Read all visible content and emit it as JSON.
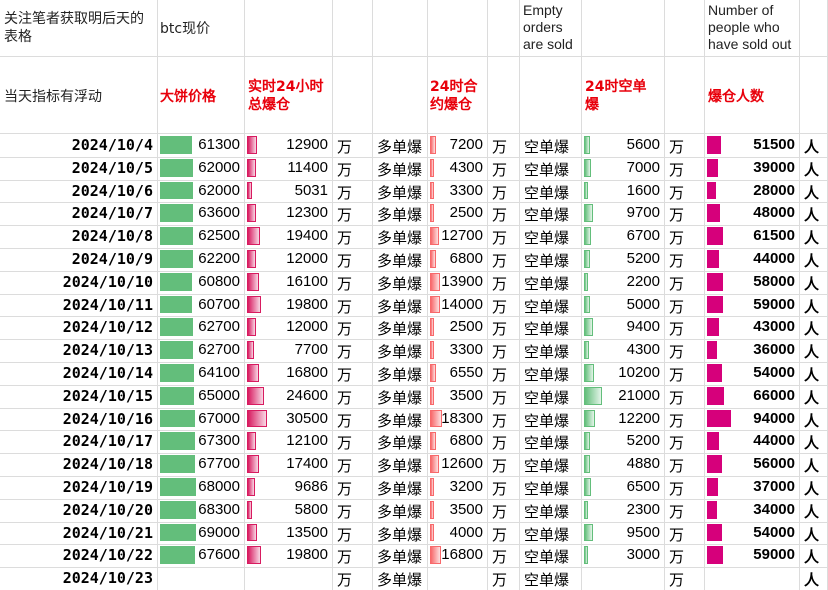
{
  "header": {
    "row1": {
      "note": "关注笔者获取明后天的表格",
      "price": "btc现价",
      "short_en": "Empty orders are sold",
      "people_en": "Number of people who have sold out"
    },
    "row2": {
      "note": "当天指标有浮动",
      "price": "大饼价格",
      "total": "实时24小时总爆仓",
      "long": "24时合约爆仓",
      "short": "24时空单爆",
      "people": "爆仓人数"
    }
  },
  "table": {
    "rows": [
      [
        "2024/10/4",
        61300,
        12900,
        "万",
        "多单爆",
        7200,
        "万",
        "空单爆",
        5600,
        "万",
        51500,
        "人"
      ],
      [
        "2024/10/5",
        62000,
        11400,
        "万",
        "多单爆",
        4300,
        "万",
        "空单爆",
        7000,
        "万",
        39000,
        "人"
      ],
      [
        "2024/10/6",
        62000,
        5031,
        "万",
        "多单爆",
        3300,
        "万",
        "空单爆",
        1600,
        "万",
        28000,
        "人"
      ],
      [
        "2024/10/7",
        63600,
        12300,
        "万",
        "多单爆",
        2500,
        "万",
        "空单爆",
        9700,
        "万",
        48000,
        "人"
      ],
      [
        "2024/10/8",
        62500,
        19400,
        "万",
        "多单爆",
        12700,
        "万",
        "空单爆",
        6700,
        "万",
        61500,
        "人"
      ],
      [
        "2024/10/9",
        62200,
        12000,
        "万",
        "多单爆",
        6800,
        "万",
        "空单爆",
        5200,
        "万",
        44000,
        "人"
      ],
      [
        "2024/10/10",
        60800,
        16100,
        "万",
        "多单爆",
        13900,
        "万",
        "空单爆",
        2200,
        "万",
        58000,
        "人"
      ],
      [
        "2024/10/11",
        60700,
        19800,
        "万",
        "多单爆",
        14000,
        "万",
        "空单爆",
        5000,
        "万",
        59000,
        "人"
      ],
      [
        "2024/10/12",
        62700,
        12000,
        "万",
        "多单爆",
        2500,
        "万",
        "空单爆",
        9400,
        "万",
        43000,
        "人"
      ],
      [
        "2024/10/13",
        62700,
        7700,
        "万",
        "多单爆",
        3300,
        "万",
        "空单爆",
        4300,
        "万",
        36000,
        "人"
      ],
      [
        "2024/10/14",
        64100,
        16800,
        "万",
        "多单爆",
        6550,
        "万",
        "空单爆",
        10200,
        "万",
        54000,
        "人"
      ],
      [
        "2024/10/15",
        65000,
        24600,
        "万",
        "多单爆",
        3500,
        "万",
        "空单爆",
        21000,
        "万",
        66000,
        "人"
      ],
      [
        "2024/10/16",
        67000,
        30500,
        "万",
        "多单爆",
        18300,
        "万",
        "空单爆",
        12200,
        "万",
        94000,
        "人"
      ],
      [
        "2024/10/17",
        67300,
        12100,
        "万",
        "多单爆",
        6800,
        "万",
        "空单爆",
        5200,
        "万",
        44000,
        "人"
      ],
      [
        "2024/10/18",
        67700,
        17400,
        "万",
        "多单爆",
        12600,
        "万",
        "空单爆",
        4880,
        "万",
        56000,
        "人"
      ],
      [
        "2024/10/19",
        68000,
        9686,
        "万",
        "多单爆",
        3200,
        "万",
        "空单爆",
        6500,
        "万",
        37000,
        "人"
      ],
      [
        "2024/10/20",
        68300,
        5800,
        "万",
        "多单爆",
        3500,
        "万",
        "空单爆",
        2300,
        "万",
        34000,
        "人"
      ],
      [
        "2024/10/21",
        69000,
        13500,
        "万",
        "多单爆",
        4000,
        "万",
        "空单爆",
        9500,
        "万",
        54000,
        "人"
      ],
      [
        "2024/10/22",
        67600,
        19800,
        "万",
        "多单爆",
        16800,
        "万",
        "空单爆",
        3000,
        "万",
        59000,
        "人"
      ],
      [
        "2024/10/23",
        null,
        null,
        "万",
        "多单爆",
        null,
        "万",
        "空单爆",
        null,
        "万",
        null,
        "人"
      ]
    ]
  }
}
